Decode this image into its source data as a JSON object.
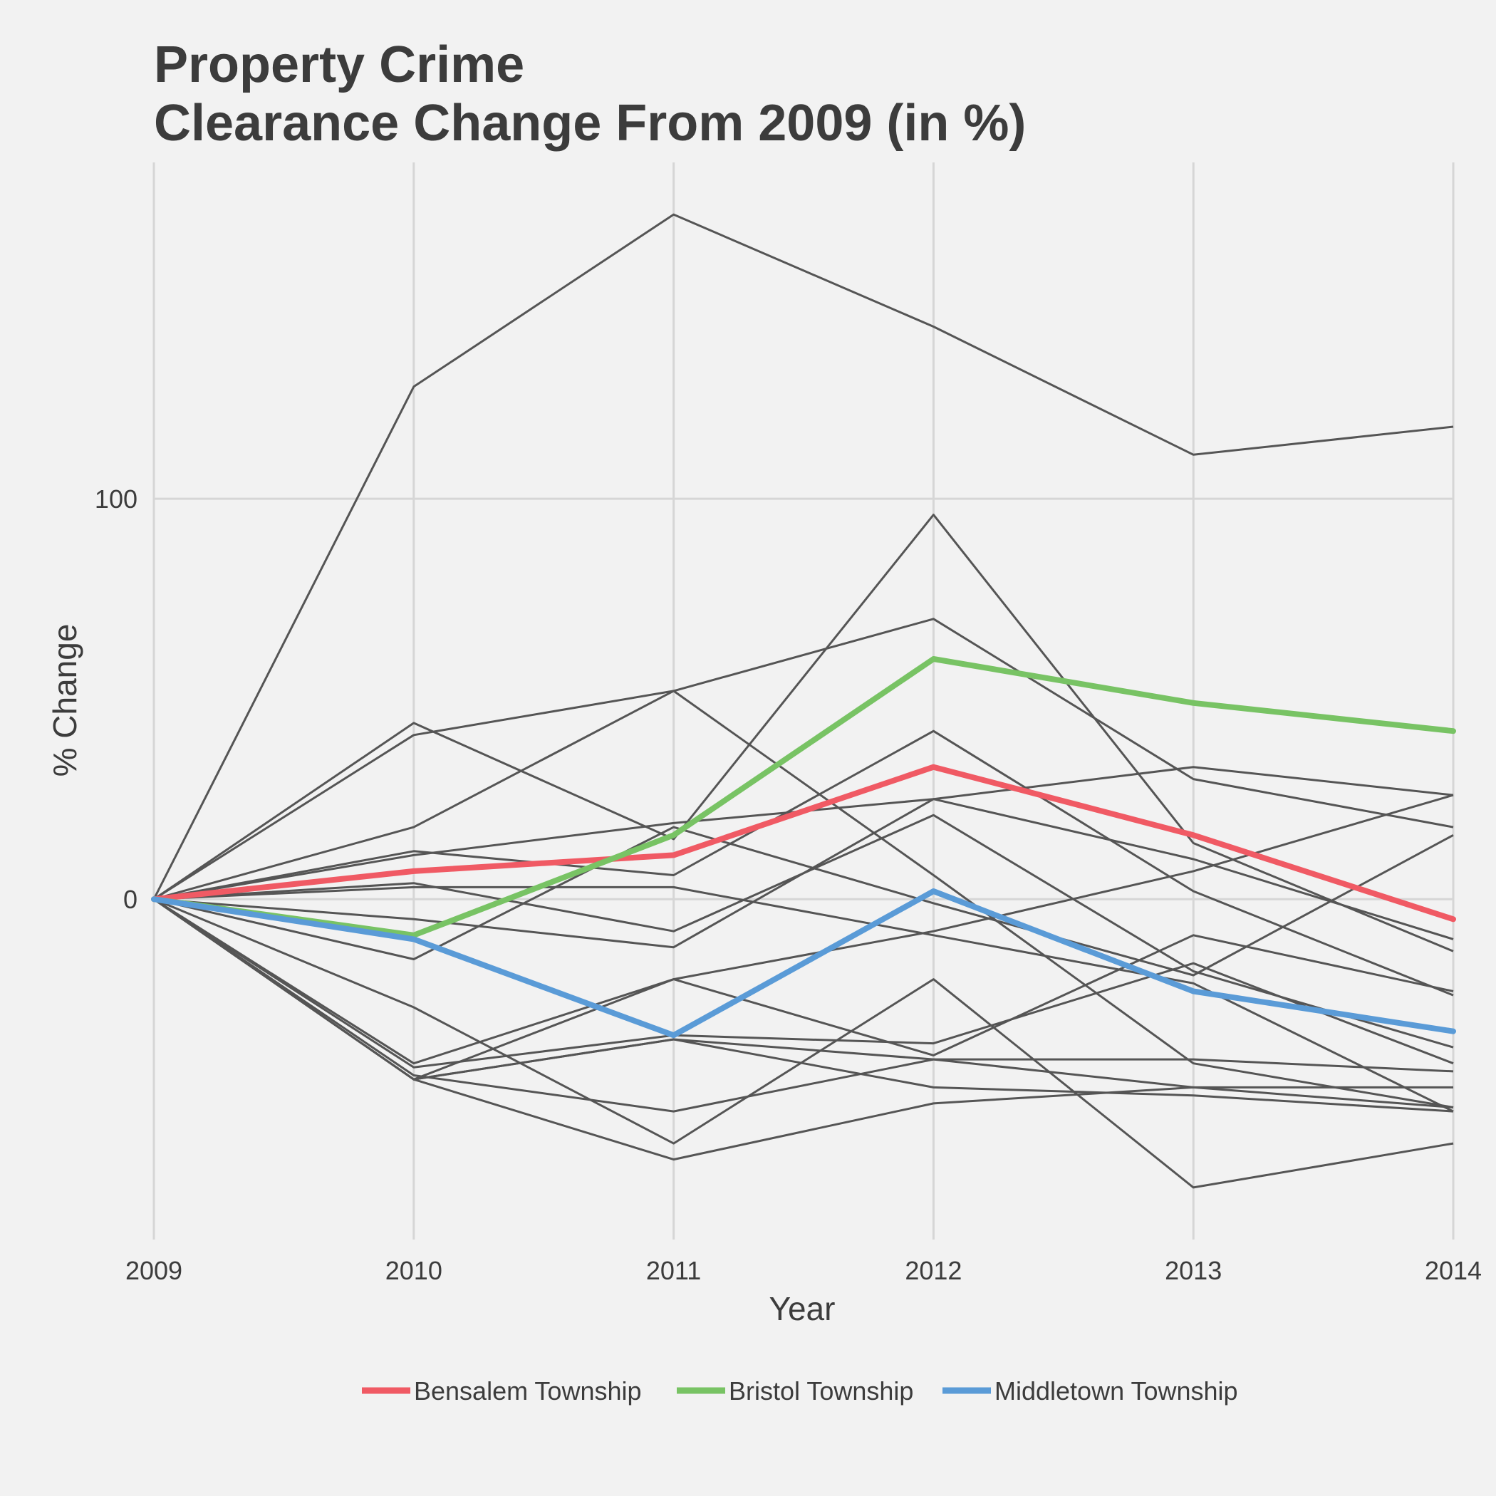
{
  "chart_data": {
    "type": "line",
    "title": [
      "Property Crime",
      "Clearance Change From 2009 (in %)"
    ],
    "xlabel": "Year",
    "ylabel": "% Change",
    "x": [
      2009,
      2010,
      2011,
      2012,
      2013,
      2014
    ],
    "x_ticks": [
      "2009",
      "2010",
      "2011",
      "2012",
      "2013",
      "2014"
    ],
    "y_ticks": [
      0,
      100
    ],
    "ylim": [
      -85,
      184
    ],
    "grid": true,
    "legend_position": "bottom",
    "background_series": [
      {
        "values": [
          0,
          128,
          171,
          143,
          111,
          118
        ]
      },
      {
        "values": [
          0,
          41,
          52,
          6,
          -41,
          -52
        ]
      },
      {
        "values": [
          0,
          18,
          52,
          70,
          30,
          18
        ]
      },
      {
        "values": [
          0,
          44,
          15,
          96,
          14,
          -13
        ]
      },
      {
        "values": [
          0,
          12,
          6,
          42,
          2,
          -24
        ]
      },
      {
        "values": [
          0,
          11,
          19,
          25,
          10,
          -10
        ]
      },
      {
        "values": [
          0,
          3,
          3,
          -9,
          -21,
          -53
        ]
      },
      {
        "values": [
          0,
          -5,
          -12,
          25,
          33,
          26
        ]
      },
      {
        "values": [
          0,
          4,
          -8,
          21,
          -18,
          -37
        ]
      },
      {
        "values": [
          0,
          -15,
          18,
          -1,
          -19,
          16
        ]
      },
      {
        "values": [
          0,
          -27,
          -61,
          -20,
          -72,
          -61
        ]
      },
      {
        "values": [
          0,
          -41,
          -20,
          -8,
          7,
          26
        ]
      },
      {
        "values": [
          0,
          -42,
          -34,
          -36,
          -16,
          -41
        ]
      },
      {
        "values": [
          0,
          -45,
          -20,
          -39,
          -9,
          -23
        ]
      },
      {
        "values": [
          0,
          -44,
          -53,
          -40,
          -40,
          -43
        ]
      },
      {
        "values": [
          0,
          -45,
          -35,
          -40,
          -47,
          -47
        ]
      },
      {
        "values": [
          0,
          -45,
          -65,
          -51,
          -47,
          -52
        ]
      },
      {
        "values": [
          0,
          -45,
          -35,
          -47,
          -49,
          -53
        ]
      }
    ],
    "series": [
      {
        "name": "Bensalem Township",
        "color": "#f05a64",
        "values": [
          0,
          7,
          11,
          33,
          16,
          -5
        ]
      },
      {
        "name": "Bristol Township",
        "color": "#78c364",
        "values": [
          0,
          -9,
          16,
          60,
          49,
          42
        ]
      },
      {
        "name": "Middletown Township",
        "color": "#5a9bd7",
        "values": [
          0,
          -10,
          -34,
          2,
          -23,
          -33
        ]
      }
    ],
    "background_color": "#555555"
  }
}
